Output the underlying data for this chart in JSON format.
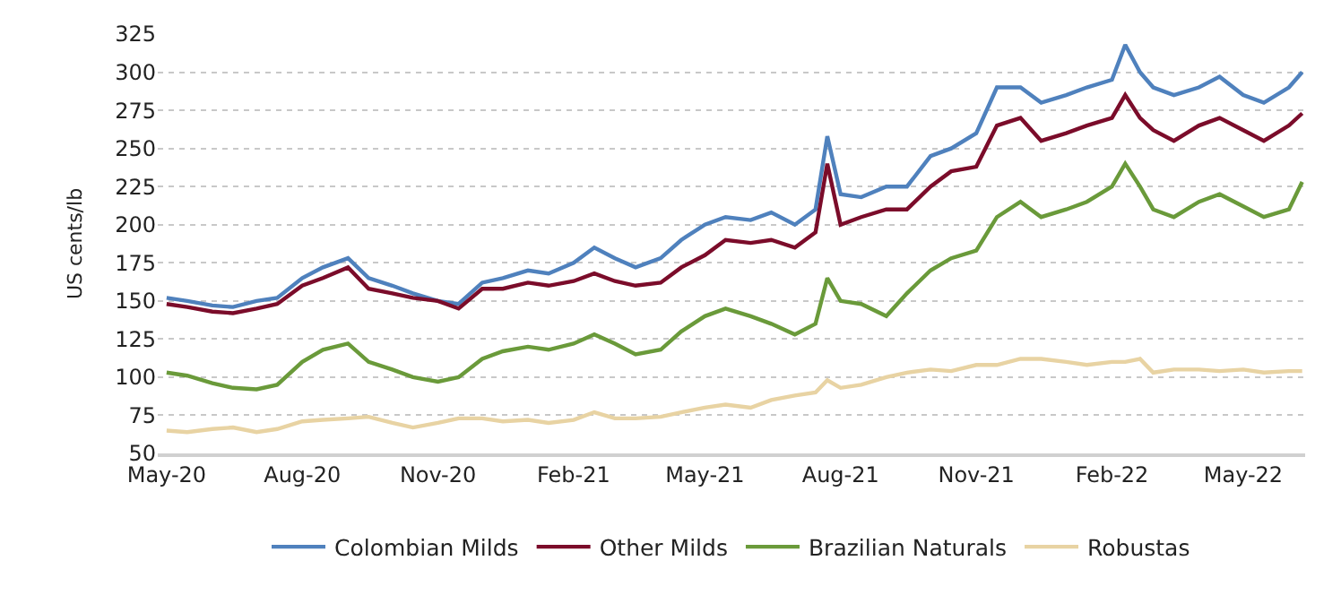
{
  "chart_data": {
    "type": "line",
    "ylabel": "US cents/lb",
    "x": [
      "2020-05-01",
      "2020-05-15",
      "2020-06-01",
      "2020-06-15",
      "2020-07-01",
      "2020-07-15",
      "2020-08-01",
      "2020-08-15",
      "2020-09-01",
      "2020-09-15",
      "2020-10-01",
      "2020-10-15",
      "2020-11-01",
      "2020-11-15",
      "2020-12-01",
      "2020-12-15",
      "2021-01-01",
      "2021-01-15",
      "2021-02-01",
      "2021-02-15",
      "2021-03-01",
      "2021-03-15",
      "2021-04-01",
      "2021-04-15",
      "2021-05-01",
      "2021-05-15",
      "2021-06-01",
      "2021-06-15",
      "2021-07-01",
      "2021-07-15",
      "2021-07-23",
      "2021-08-01",
      "2021-08-15",
      "2021-09-01",
      "2021-09-15",
      "2021-10-01",
      "2021-10-15",
      "2021-11-01",
      "2021-11-15",
      "2021-12-01",
      "2021-12-15",
      "2022-01-01",
      "2022-01-15",
      "2022-02-01",
      "2022-02-10",
      "2022-02-20",
      "2022-03-01",
      "2022-03-15",
      "2022-04-01",
      "2022-04-15",
      "2022-05-01",
      "2022-05-15",
      "2022-06-01",
      "2022-06-10"
    ],
    "series": [
      {
        "name": "Colombian Milds",
        "color": "#4f81bd",
        "values": [
          152,
          150,
          147,
          146,
          150,
          152,
          165,
          172,
          178,
          165,
          160,
          155,
          150,
          148,
          162,
          165,
          170,
          168,
          175,
          185,
          178,
          172,
          178,
          190,
          200,
          205,
          203,
          208,
          200,
          210,
          258,
          220,
          218,
          225,
          225,
          245,
          250,
          260,
          290,
          290,
          280,
          285,
          290,
          295,
          318,
          300,
          290,
          285,
          290,
          297,
          285,
          280,
          290,
          300
        ]
      },
      {
        "name": "Other Milds",
        "color": "#7b0c2a",
        "values": [
          148,
          146,
          143,
          142,
          145,
          148,
          160,
          165,
          172,
          158,
          155,
          152,
          150,
          145,
          158,
          158,
          162,
          160,
          163,
          168,
          163,
          160,
          162,
          172,
          180,
          190,
          188,
          190,
          185,
          195,
          240,
          200,
          205,
          210,
          210,
          225,
          235,
          238,
          265,
          270,
          255,
          260,
          265,
          270,
          285,
          270,
          262,
          255,
          265,
          270,
          262,
          255,
          265,
          273
        ]
      },
      {
        "name": "Brazilian Naturals",
        "color": "#6a9a3a",
        "values": [
          103,
          101,
          96,
          93,
          92,
          95,
          110,
          118,
          122,
          110,
          105,
          100,
          97,
          100,
          112,
          117,
          120,
          118,
          122,
          128,
          122,
          115,
          118,
          130,
          140,
          145,
          140,
          135,
          128,
          135,
          165,
          150,
          148,
          140,
          155,
          170,
          178,
          183,
          205,
          215,
          205,
          210,
          215,
          225,
          240,
          225,
          210,
          205,
          215,
          220,
          212,
          205,
          210,
          228
        ]
      },
      {
        "name": "Robustas",
        "color": "#e8d3a3",
        "values": [
          65,
          64,
          66,
          67,
          64,
          66,
          71,
          72,
          73,
          74,
          70,
          67,
          70,
          73,
          73,
          71,
          72,
          70,
          72,
          77,
          73,
          73,
          74,
          77,
          80,
          82,
          80,
          85,
          88,
          90,
          98,
          93,
          95,
          100,
          103,
          105,
          104,
          108,
          108,
          112,
          112,
          110,
          108,
          110,
          110,
          112,
          103,
          105,
          105,
          104,
          105,
          103,
          104,
          104
        ]
      }
    ],
    "xlim": [
      "2020-04-25",
      "2022-06-12"
    ],
    "xticks": [
      {
        "value": "2020-05-01",
        "label": "May-20"
      },
      {
        "value": "2020-08-01",
        "label": "Aug-20"
      },
      {
        "value": "2020-11-01",
        "label": "Nov-20"
      },
      {
        "value": "2021-02-01",
        "label": "Feb-21"
      },
      {
        "value": "2021-05-01",
        "label": "May-21"
      },
      {
        "value": "2021-08-01",
        "label": "Aug-21"
      },
      {
        "value": "2021-11-01",
        "label": "Nov-21"
      },
      {
        "value": "2022-02-01",
        "label": "Feb-22"
      },
      {
        "value": "2022-05-01",
        "label": "May-22"
      }
    ],
    "ylim": [
      50,
      325
    ],
    "yticks": [
      50,
      75,
      100,
      125,
      150,
      175,
      200,
      225,
      250,
      275,
      300,
      325
    ],
    "grid": "y",
    "legend": "bottom",
    "marker": "none",
    "line_style": "solid"
  }
}
